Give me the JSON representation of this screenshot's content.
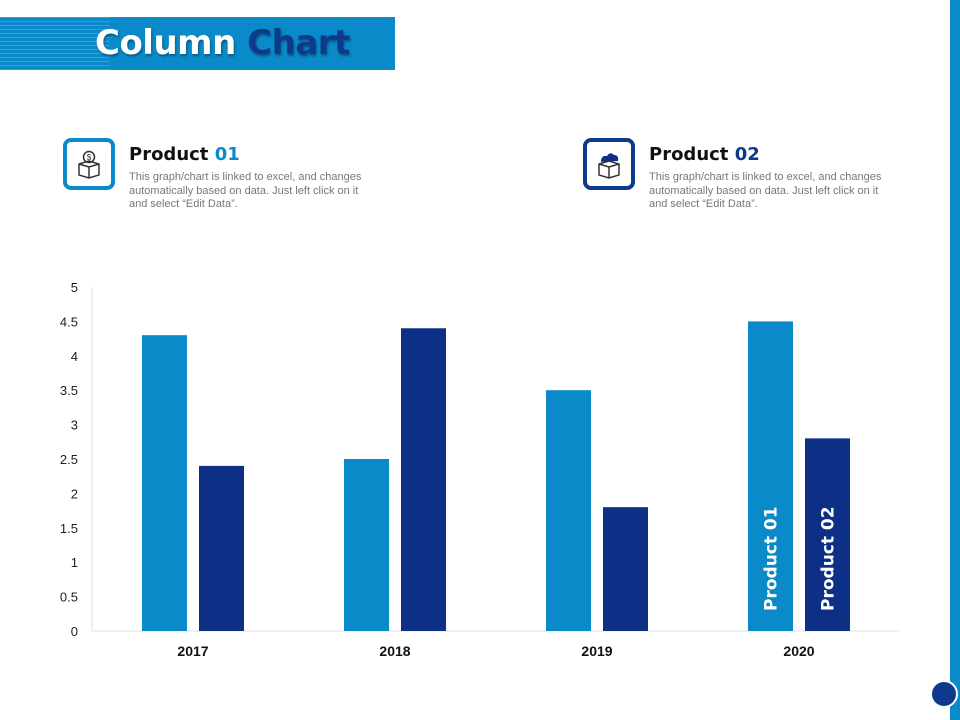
{
  "title": {
    "word1": "Column",
    "word2": "Chart"
  },
  "products": [
    {
      "heading_word": "Product",
      "heading_num": "01",
      "description": "This graph/chart is linked to excel, and changes automatically based on data. Just left click on it and select “Edit Data”.",
      "icon": "money-box-icon"
    },
    {
      "heading_word": "Product",
      "heading_num": "02",
      "description": "This graph/chart is linked to excel, and changes automatically based on data. Just left click on it and select “Edit Data”.",
      "icon": "box-cloud-icon"
    }
  ],
  "colors": {
    "product01": "#0a8ac8",
    "product02": "#0d2f85",
    "accent": "#0a8ac8"
  },
  "chart_data": {
    "type": "bar",
    "categories": [
      "2017",
      "2018",
      "2019",
      "2020"
    ],
    "series": [
      {
        "name": "Product 01",
        "values": [
          4.3,
          2.5,
          3.5,
          4.5
        ]
      },
      {
        "name": "Product 02",
        "values": [
          2.4,
          4.4,
          1.8,
          2.8
        ]
      }
    ],
    "yticks": [
      "0",
      "0.5",
      "1",
      "1.5",
      "2",
      "2.5",
      "3",
      "3.5",
      "4",
      "4.5",
      "5"
    ],
    "ylim": [
      0,
      5
    ],
    "grid": false,
    "legend": "inside last category bars"
  }
}
